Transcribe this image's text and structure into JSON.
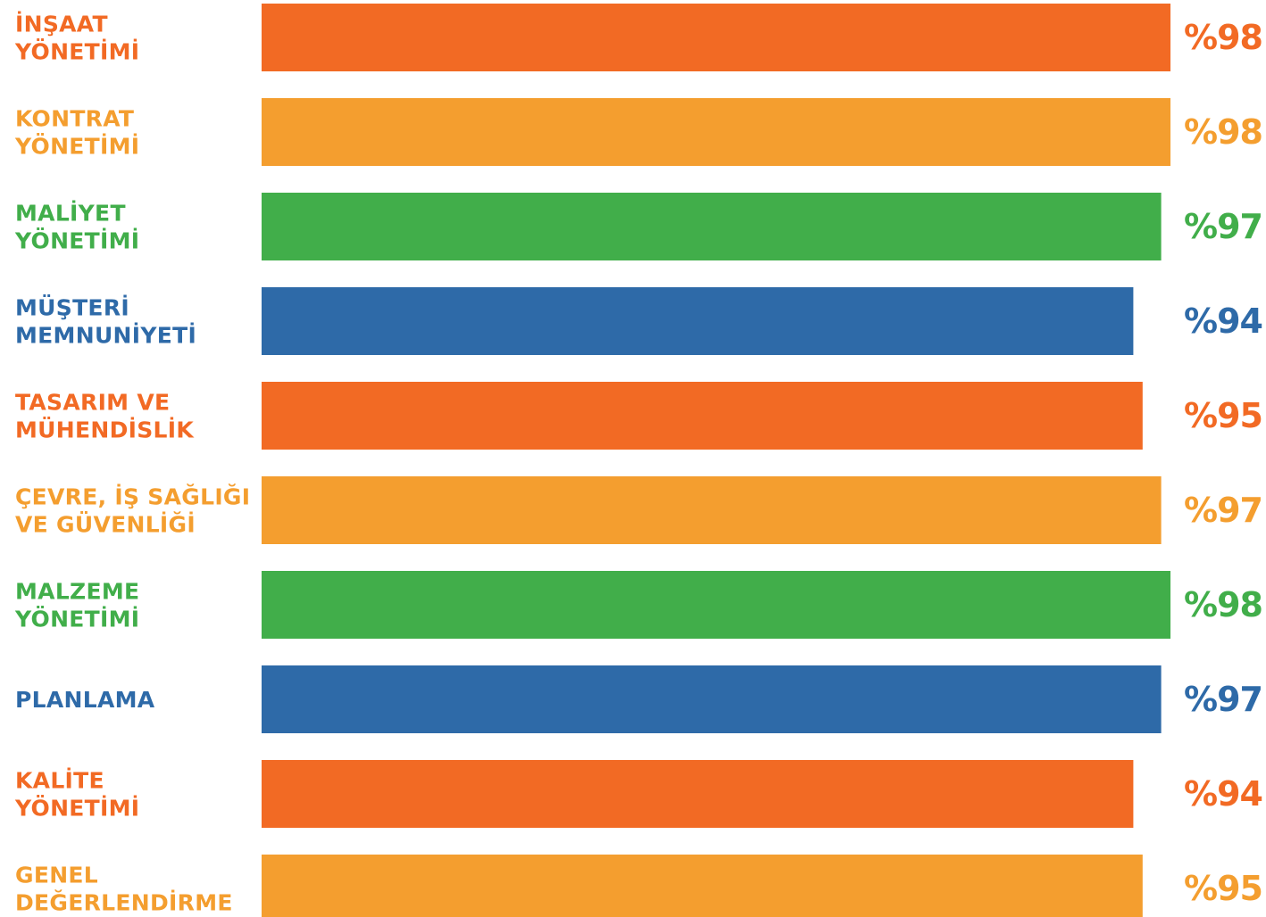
{
  "chart_data": {
    "type": "bar",
    "orientation": "horizontal",
    "categories": [
      [
        "İNŞAAT",
        "YÖNETİMİ"
      ],
      [
        "KONTRAT",
        "YÖNETİMİ"
      ],
      [
        "MALİYET",
        "YÖNETİMİ"
      ],
      [
        "MÜŞTERİ",
        "MEMNUNİYETİ"
      ],
      [
        "TASARIM VE",
        "MÜHENDİSLİK"
      ],
      [
        "ÇEVRE, İŞ SAĞLIĞI",
        "VE GÜVENLİĞİ"
      ],
      [
        "MALZEME",
        "YÖNETİMİ"
      ],
      [
        "PLANLAMA"
      ],
      [
        "KALİTE",
        "YÖNETİMİ"
      ],
      [
        "GENEL",
        "DEĞERLENDİRME"
      ]
    ],
    "values": [
      98,
      98,
      97,
      94,
      95,
      97,
      98,
      97,
      94,
      95
    ],
    "value_labels": [
      "%98",
      "%98",
      "%97",
      "%94",
      "%95",
      "%97",
      "%98",
      "%97",
      "%94",
      "%95"
    ],
    "colors": [
      "#f26a24",
      "#f49e2f",
      "#41ae4a",
      "#2e6aa8",
      "#f26a24",
      "#f49e2f",
      "#41ae4a",
      "#2e6aa8",
      "#f26a24",
      "#f49e2f"
    ],
    "title": "",
    "xlabel": "",
    "ylabel": "",
    "grid": false,
    "legend": "none"
  }
}
